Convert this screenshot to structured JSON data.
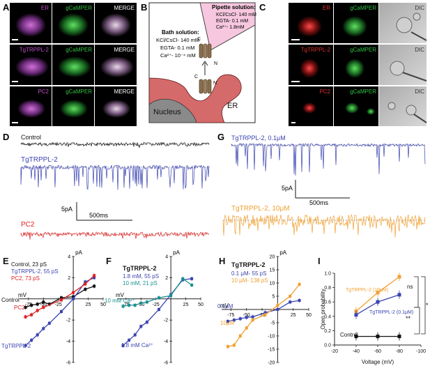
{
  "panels": {
    "A": {
      "letter": "A",
      "rows": [
        {
          "labels": [
            "ER",
            "gCaMPER",
            "MERGE"
          ]
        },
        {
          "labels": [
            "TgTRPPL-2",
            "gCaMPER",
            "MERGE"
          ]
        },
        {
          "labels": [
            "PC2",
            "gCaMPER",
            "MERGE"
          ]
        }
      ]
    },
    "B": {
      "letter": "B",
      "bath_title": "Bath solution:",
      "bath_lines": [
        "KCl/CsCl- 140 mM",
        "EGTA- 0.1 mM",
        "Ca²⁺- 10⁻⁴ mM"
      ],
      "pipette_title": "Pipette solution:",
      "pipette_lines": [
        "KCl/CsCl- 140 mM",
        "EGTA- 0.1 mM",
        "Ca²⁺- 1.8mM"
      ],
      "nucleus_label": "Nucleus",
      "er_label": "ER",
      "c_label": "C",
      "n_label": "N"
    },
    "C": {
      "letter": "C",
      "rows": [
        {
          "labels": [
            "ER",
            "gCaMPER",
            "DIC"
          ]
        },
        {
          "labels": [
            "TgTRPPL-2",
            "gCaMPER",
            "DIC"
          ]
        },
        {
          "labels": [
            "PC2",
            "gCaMPER",
            "DIC"
          ]
        }
      ]
    },
    "D": {
      "letter": "D",
      "traces": [
        "Control",
        "TgTRPPL-2",
        "PC2"
      ],
      "scale_y": "5pA",
      "scale_x": "500ms"
    },
    "G": {
      "letter": "G",
      "traces": [
        "TgTRPPL-2, 0.1μM",
        "TgTRPPL-2, 10μM"
      ],
      "scale_y": "5pA",
      "scale_x": "500ms"
    }
  },
  "colors": {
    "control": "#111111",
    "tgtrppl2": "#3a43b0",
    "pc2": "#e02020",
    "teal": "#1a9090",
    "orange": "#f0a030",
    "er_red": "#d83a3a",
    "magenta": "#c050c8",
    "green": "#30c040"
  },
  "chart_data": [
    {
      "id": "E",
      "letter": "E",
      "type": "line",
      "ylabel": "pA",
      "xlabel": "mV",
      "x_ticks": [
        "-75",
        "-50",
        "-25",
        "25",
        "50"
      ],
      "y_ticks": [
        "4",
        "2",
        "-2",
        "-4",
        "-6"
      ],
      "xlim": [
        -90,
        50
      ],
      "ylim": [
        -6,
        4
      ],
      "legend": [
        "Control, 23 pS",
        "TgTRPPL-2, 55 pS",
        "PC2, 73 pS"
      ],
      "inline_labels": [
        "Control",
        "PC2",
        "TgTRPPL-2"
      ],
      "series": [
        {
          "name": "Control",
          "color": "#111111",
          "points": [
            [
              -80,
              -0.8
            ],
            [
              -70,
              -0.6
            ],
            [
              -60,
              -0.5
            ],
            [
              -50,
              -0.3
            ],
            [
              -40,
              -0.5
            ],
            [
              -20,
              0.1
            ],
            [
              0,
              0.2
            ],
            [
              20,
              0.9
            ],
            [
              35,
              1.2
            ]
          ]
        },
        {
          "name": "TgTRPPL-2",
          "color": "#3a43b0",
          "points": [
            [
              -80,
              -4.4
            ],
            [
              -70,
              -3.9
            ],
            [
              -60,
              -3.4
            ],
            [
              -50,
              -2.8
            ],
            [
              -40,
              -2.3
            ],
            [
              -20,
              -1.2
            ],
            [
              0,
              0
            ],
            [
              20,
              1.6
            ],
            [
              35,
              2.0
            ]
          ]
        },
        {
          "name": "PC2",
          "color": "#e02020",
          "points": [
            [
              -80,
              -1.7
            ],
            [
              -70,
              -1.5
            ],
            [
              -60,
              -1.1
            ],
            [
              -50,
              -0.8
            ],
            [
              -20,
              -0.1
            ],
            [
              0,
              0.6
            ],
            [
              20,
              1.4
            ],
            [
              35,
              2.2
            ]
          ]
        }
      ]
    },
    {
      "id": "F",
      "letter": "F",
      "type": "line",
      "ylabel": "pA",
      "xlabel": "mV",
      "title": "TgTRPPL-2",
      "x_ticks": [
        "-75",
        "-50",
        "-25",
        "25",
        "50"
      ],
      "y_ticks": [
        "4",
        "2",
        "-2",
        "-4",
        "-6"
      ],
      "xlim": [
        -90,
        50
      ],
      "ylim": [
        -6,
        4
      ],
      "legend": [
        "1.8 mM, 55 pS",
        "10 mM, 21 pS"
      ],
      "inline_labels": [
        "10 mM Ca²⁺",
        "1.8 mM Ca²⁺"
      ],
      "series": [
        {
          "name": "1.8 mM",
          "color": "#3a43b0",
          "points": [
            [
              -80,
              -4.4
            ],
            [
              -70,
              -3.9
            ],
            [
              -60,
              -3.4
            ],
            [
              -50,
              -2.6
            ],
            [
              -40,
              -2.2
            ],
            [
              -20,
              -1.0
            ],
            [
              0,
              0.4
            ],
            [
              20,
              1.8
            ],
            [
              35,
              1.9
            ]
          ]
        },
        {
          "name": "10 mM",
          "color": "#1a9090",
          "points": [
            [
              -80,
              -0.7
            ],
            [
              -70,
              -0.6
            ],
            [
              -60,
              -0.6
            ],
            [
              -50,
              -0.4
            ],
            [
              -40,
              -0.3
            ],
            [
              -20,
              0.1
            ],
            [
              0,
              0.3
            ],
            [
              20,
              1.9
            ],
            [
              35,
              1.3
            ]
          ]
        }
      ]
    },
    {
      "id": "H",
      "letter": "H",
      "type": "line",
      "ylabel": "pA",
      "xlabel": "mV",
      "title": "TgTRPPL-2",
      "x_ticks": [
        "-75",
        "-50",
        "-25",
        "25",
        "50"
      ],
      "y_ticks": [
        "20",
        "15",
        "10",
        "5",
        "-5",
        "-10",
        "-15",
        "-20"
      ],
      "xlim": [
        -90,
        50
      ],
      "ylim": [
        -20,
        20
      ],
      "legend": [
        "0.1 μM- 55 pS",
        "10 μM- 138 pS"
      ],
      "inline_labels": [
        "0.1μM",
        "10μM"
      ],
      "series": [
        {
          "name": "0.1 μM",
          "color": "#3a43b0",
          "points": [
            [
              -80,
              -4.5
            ],
            [
              -70,
              -4.0
            ],
            [
              -60,
              -3.5
            ],
            [
              -50,
              -3.0
            ],
            [
              -40,
              -2.8
            ],
            [
              -20,
              -1.2
            ],
            [
              0,
              0
            ],
            [
              20,
              2.8
            ],
            [
              35,
              3.4
            ]
          ]
        },
        {
          "name": "10 μM",
          "color": "#f0a030",
          "points": [
            [
              -80,
              -14.0
            ],
            [
              -70,
              -13.5
            ],
            [
              -60,
              -10.0
            ],
            [
              -50,
              -7.0
            ],
            [
              -40,
              -4.0
            ],
            [
              -20,
              -2.0
            ],
            [
              0,
              1.5
            ],
            [
              20,
              5.0
            ],
            [
              35,
              9.5
            ]
          ]
        }
      ]
    },
    {
      "id": "I",
      "letter": "I",
      "type": "line",
      "ylabel": "Open probability",
      "xlabel": "Voltage (mV)",
      "x_ticks": [
        "-20",
        "-40",
        "-60",
        "-80",
        "-100"
      ],
      "y_ticks": [
        "1.0",
        "0.8",
        "0.6",
        "0.4",
        "0.2",
        "0.0"
      ],
      "xlim": [
        -20,
        -100
      ],
      "ylim": [
        0,
        1
      ],
      "annotations": [
        "ns",
        "*",
        "**"
      ],
      "series": [
        {
          "name": "TgTRPPL-2 (10μM)",
          "color": "#f0a030",
          "points": [
            [
              -40,
              0.47
            ],
            [
              -60,
              0.73
            ],
            [
              -80,
              0.95
            ]
          ]
        },
        {
          "name": "TgTRPPL-2 (0.1μM)",
          "color": "#3a43b0",
          "points": [
            [
              -40,
              0.42
            ],
            [
              -60,
              0.6
            ],
            [
              -80,
              0.7
            ]
          ]
        },
        {
          "name": "Control",
          "color": "#111111",
          "points": [
            [
              -40,
              0.12
            ],
            [
              -60,
              0.12
            ],
            [
              -80,
              0.12
            ]
          ]
        }
      ]
    }
  ]
}
